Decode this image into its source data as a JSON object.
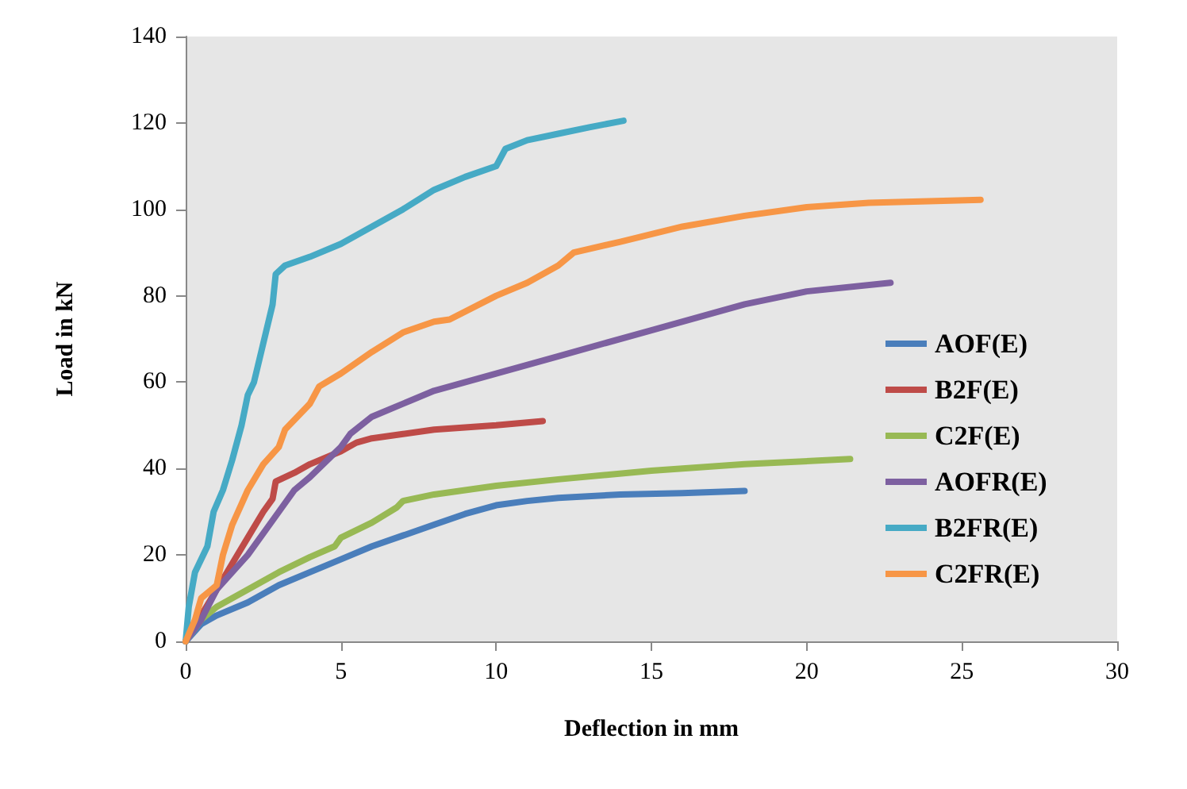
{
  "chart_data": {
    "type": "line",
    "xlabel": "Deflection in mm",
    "ylabel": "Load in kN",
    "xlim": [
      0,
      30
    ],
    "xticks": [
      0,
      5,
      10,
      15,
      20,
      25,
      30
    ],
    "ylim": [
      0,
      140
    ],
    "yticks": [
      0,
      20,
      40,
      60,
      80,
      100,
      120,
      140
    ],
    "grid": false,
    "legend": "right",
    "marker": "none",
    "line_style": "solid",
    "series": [
      {
        "name": "AOF(E)",
        "color": "#4a7ebb",
        "x": [
          0,
          0.5,
          1,
          2,
          3,
          4,
          5,
          6,
          7,
          8,
          9,
          10,
          11,
          12,
          14,
          16,
          18
        ],
        "values": [
          0,
          4,
          6,
          9,
          13,
          16,
          19,
          22,
          24.5,
          27,
          29.5,
          31.5,
          32.5,
          33.2,
          34,
          34.3,
          34.8
        ]
      },
      {
        "name": "B2F(E)",
        "color": "#be4b48",
        "x": [
          0,
          0.5,
          1,
          1.5,
          2,
          2.5,
          2.8,
          2.9,
          3.5,
          4,
          5,
          5.5,
          6,
          7,
          8,
          10,
          11.5
        ],
        "values": [
          0,
          6,
          12,
          18,
          24,
          30,
          33,
          37,
          39,
          41,
          44,
          46,
          47,
          48,
          49,
          50,
          51
        ]
      },
      {
        "name": "C2F(E)",
        "color": "#98b954",
        "x": [
          0,
          0.5,
          1,
          2,
          3,
          4,
          4.8,
          5,
          6,
          6.8,
          7,
          8,
          10,
          12,
          15,
          18,
          21.4
        ],
        "values": [
          0,
          5,
          8,
          12,
          16,
          19.5,
          22,
          24,
          27.5,
          31,
          32.5,
          34,
          36,
          37.5,
          39.5,
          41,
          42.2
        ]
      },
      {
        "name": "AOFR(E)",
        "color": "#7d60a0",
        "x": [
          0,
          0.5,
          1,
          2,
          3,
          3.5,
          4,
          5,
          5.3,
          6,
          7,
          8,
          10,
          12,
          15,
          18,
          20,
          22.7
        ],
        "values": [
          0,
          5,
          12,
          20,
          30,
          35,
          38,
          45,
          48,
          52,
          55,
          58,
          62,
          66,
          72,
          78,
          81,
          83
        ]
      },
      {
        "name": "B2FR(E)",
        "color": "#46aac5",
        "x": [
          0,
          0.1,
          0.3,
          0.7,
          0.9,
          1.2,
          1.5,
          1.8,
          2,
          2.2,
          2.6,
          2.8,
          2.9,
          3.2,
          4,
          5,
          6,
          7,
          8,
          9,
          10,
          10.3,
          11,
          12,
          13,
          14.1
        ],
        "values": [
          0,
          8,
          16,
          22,
          30,
          35,
          42,
          50,
          57,
          60,
          72,
          78,
          85,
          87,
          89,
          92,
          96,
          100,
          104.5,
          107.5,
          110,
          114,
          116,
          117.5,
          119,
          120.5
        ]
      },
      {
        "name": "C2FR(E)",
        "color": "#f79646",
        "x": [
          0,
          0.3,
          0.5,
          1,
          1.2,
          1.5,
          2,
          2.5,
          3,
          3.2,
          4,
          4.3,
          5,
          6,
          7,
          8,
          8.5,
          10,
          11,
          12,
          12.5,
          14,
          16,
          18,
          20,
          22,
          25.6
        ],
        "values": [
          0,
          5,
          10,
          13,
          20,
          27,
          35,
          41,
          45,
          49,
          55,
          59,
          62,
          67,
          71.5,
          74,
          74.5,
          80,
          83,
          87,
          90,
          92.5,
          96,
          98.5,
          100.5,
          101.5,
          102.2
        ]
      }
    ]
  }
}
